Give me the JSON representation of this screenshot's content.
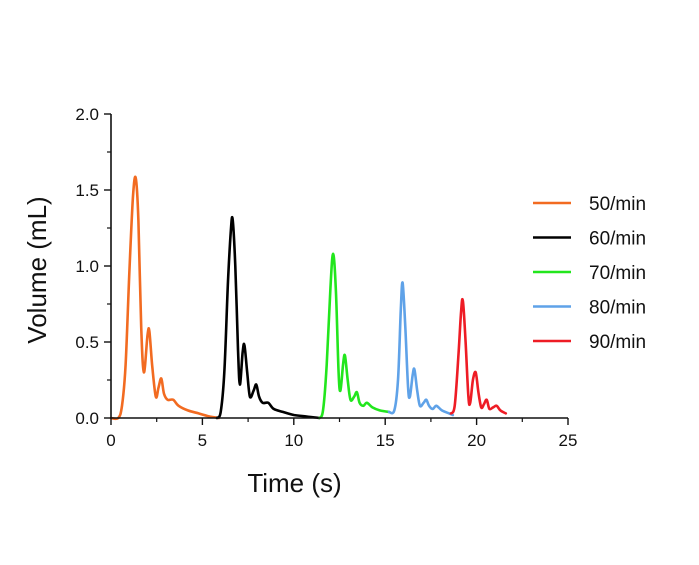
{
  "chart_data": {
    "type": "line",
    "xlabel": "Time (s)",
    "ylabel": "Volume (mL)",
    "xlim": [
      0,
      25
    ],
    "ylim": [
      0,
      2.0
    ],
    "x_ticks": [
      "0",
      "5",
      "10",
      "15",
      "20",
      "25"
    ],
    "y_ticks": [
      "0.0",
      "0.5",
      "1.0",
      "1.5",
      "2.0"
    ],
    "grid": false,
    "legend_position": "right",
    "series": [
      {
        "name": "50/min",
        "color": "#f26b21",
        "points": [
          [
            0.0,
            0.0
          ],
          [
            0.4,
            0.0
          ],
          [
            0.6,
            0.08
          ],
          [
            0.8,
            0.35
          ],
          [
            1.0,
            0.95
          ],
          [
            1.2,
            1.45
          ],
          [
            1.35,
            1.58
          ],
          [
            1.5,
            1.3
          ],
          [
            1.65,
            0.6
          ],
          [
            1.8,
            0.3
          ],
          [
            2.0,
            0.55
          ],
          [
            2.1,
            0.57
          ],
          [
            2.25,
            0.35
          ],
          [
            2.45,
            0.14
          ],
          [
            2.6,
            0.2
          ],
          [
            2.75,
            0.26
          ],
          [
            2.9,
            0.16
          ],
          [
            3.1,
            0.12
          ],
          [
            3.4,
            0.12
          ],
          [
            3.7,
            0.08
          ],
          [
            4.2,
            0.05
          ],
          [
            4.8,
            0.03
          ],
          [
            5.4,
            0.01
          ],
          [
            5.9,
            0.0
          ]
        ]
      },
      {
        "name": "60/min",
        "color": "#000000",
        "points": [
          [
            5.8,
            0.0
          ],
          [
            6.0,
            0.04
          ],
          [
            6.2,
            0.3
          ],
          [
            6.4,
            0.9
          ],
          [
            6.55,
            1.22
          ],
          [
            6.65,
            1.31
          ],
          [
            6.8,
            1.0
          ],
          [
            6.95,
            0.45
          ],
          [
            7.05,
            0.22
          ],
          [
            7.2,
            0.43
          ],
          [
            7.3,
            0.48
          ],
          [
            7.45,
            0.3
          ],
          [
            7.6,
            0.14
          ],
          [
            7.8,
            0.18
          ],
          [
            7.95,
            0.22
          ],
          [
            8.1,
            0.14
          ],
          [
            8.3,
            0.1
          ],
          [
            8.6,
            0.1
          ],
          [
            8.9,
            0.06
          ],
          [
            9.4,
            0.04
          ],
          [
            10.0,
            0.02
          ],
          [
            10.7,
            0.01
          ],
          [
            11.4,
            0.0
          ]
        ]
      },
      {
        "name": "70/min",
        "color": "#22e61d",
        "points": [
          [
            11.4,
            0.0
          ],
          [
            11.6,
            0.05
          ],
          [
            11.8,
            0.35
          ],
          [
            12.0,
            0.85
          ],
          [
            12.15,
            1.08
          ],
          [
            12.3,
            0.85
          ],
          [
            12.45,
            0.3
          ],
          [
            12.55,
            0.18
          ],
          [
            12.7,
            0.36
          ],
          [
            12.8,
            0.41
          ],
          [
            12.95,
            0.25
          ],
          [
            13.1,
            0.12
          ],
          [
            13.3,
            0.14
          ],
          [
            13.45,
            0.17
          ],
          [
            13.6,
            0.1
          ],
          [
            13.8,
            0.08
          ],
          [
            14.0,
            0.1
          ],
          [
            14.3,
            0.07
          ],
          [
            14.7,
            0.05
          ],
          [
            15.2,
            0.04
          ]
        ]
      },
      {
        "name": "80/min",
        "color": "#5fa2e8",
        "points": [
          [
            15.2,
            0.04
          ],
          [
            15.5,
            0.05
          ],
          [
            15.7,
            0.25
          ],
          [
            15.85,
            0.7
          ],
          [
            15.95,
            0.89
          ],
          [
            16.1,
            0.6
          ],
          [
            16.25,
            0.2
          ],
          [
            16.35,
            0.14
          ],
          [
            16.5,
            0.28
          ],
          [
            16.6,
            0.32
          ],
          [
            16.75,
            0.18
          ],
          [
            16.9,
            0.08
          ],
          [
            17.1,
            0.1
          ],
          [
            17.25,
            0.12
          ],
          [
            17.4,
            0.08
          ],
          [
            17.6,
            0.06
          ],
          [
            17.8,
            0.08
          ],
          [
            18.1,
            0.05
          ],
          [
            18.5,
            0.03
          ],
          [
            18.7,
            0.02
          ]
        ]
      },
      {
        "name": "90/min",
        "color": "#ee1c25",
        "points": [
          [
            18.6,
            0.03
          ],
          [
            18.8,
            0.08
          ],
          [
            19.0,
            0.4
          ],
          [
            19.15,
            0.7
          ],
          [
            19.25,
            0.77
          ],
          [
            19.4,
            0.5
          ],
          [
            19.55,
            0.14
          ],
          [
            19.65,
            0.1
          ],
          [
            19.8,
            0.25
          ],
          [
            19.95,
            0.3
          ],
          [
            20.1,
            0.17
          ],
          [
            20.25,
            0.07
          ],
          [
            20.4,
            0.09
          ],
          [
            20.55,
            0.12
          ],
          [
            20.7,
            0.06
          ],
          [
            20.9,
            0.07
          ],
          [
            21.1,
            0.08
          ],
          [
            21.3,
            0.05
          ],
          [
            21.6,
            0.03
          ]
        ]
      }
    ]
  }
}
